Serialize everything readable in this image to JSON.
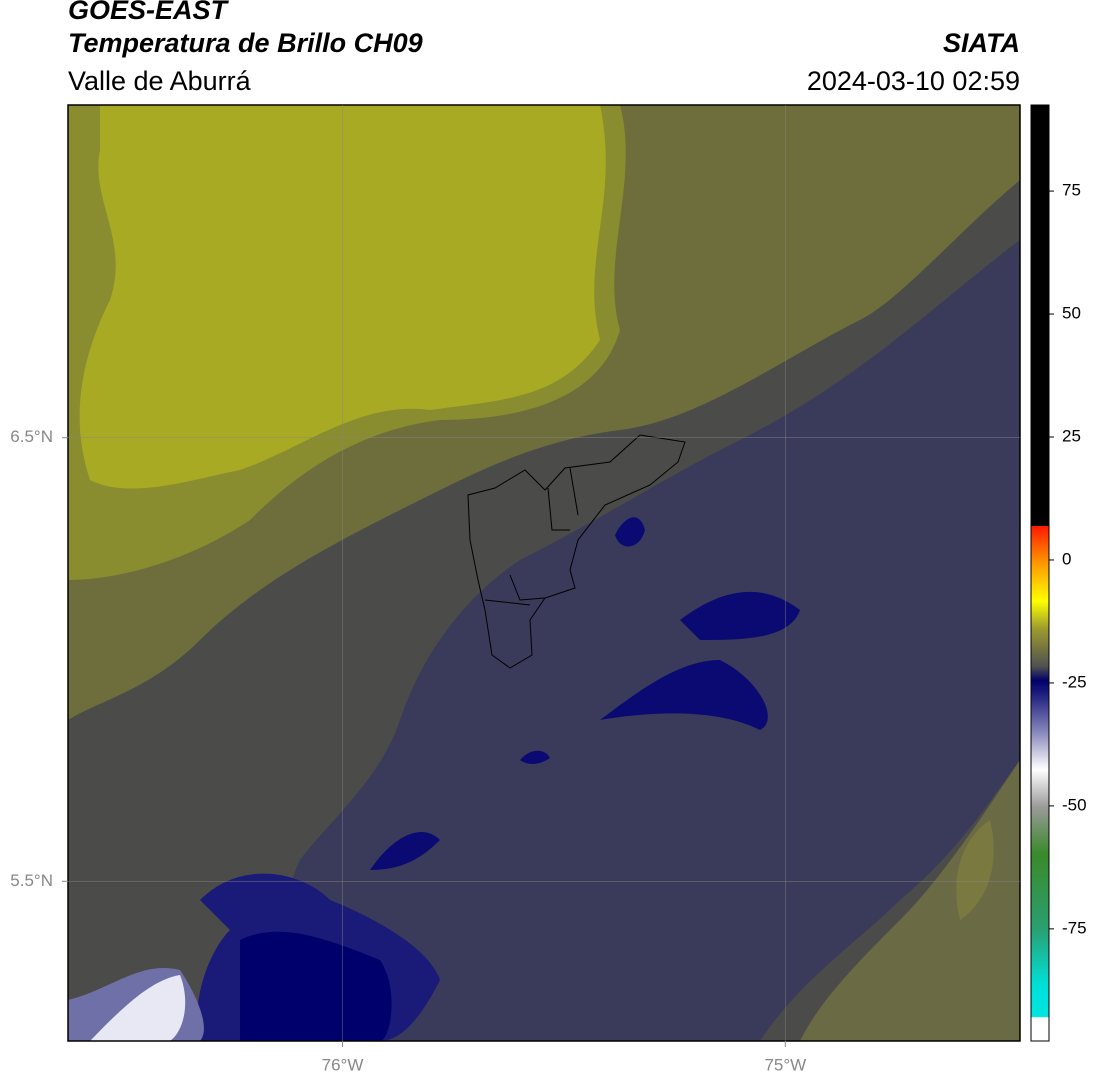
{
  "chart_data": {
    "type": "map",
    "title": "GOES-EAST",
    "subtitle": "Temperatura de Brillo CH09",
    "region": "Valle de Aburrá",
    "source": "SIATA",
    "datetime": "2024-03-10 02:59",
    "xlim": [
      -76.62,
      -74.47
    ],
    "ylim": [
      5.14,
      7.25
    ],
    "xticks": [
      {
        "value": -76,
        "label": "76°W"
      },
      {
        "value": -75,
        "label": "75°W"
      }
    ],
    "yticks": [
      {
        "value": 5.5,
        "label": "5.5°N"
      },
      {
        "value": 6.5,
        "label": "6.5°N"
      }
    ],
    "colorbar": {
      "lim": [
        -97.8,
        92.5
      ],
      "ticks": [
        -75,
        -50,
        -25,
        0,
        25,
        50,
        75
      ]
    }
  }
}
